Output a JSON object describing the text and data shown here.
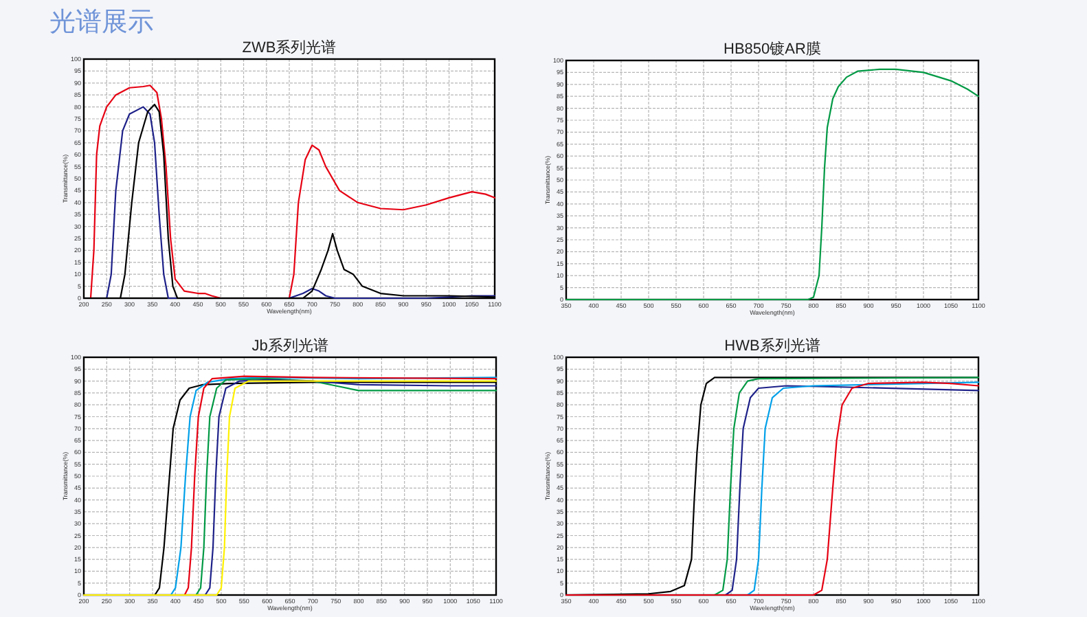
{
  "chart_data": [
    {
      "type": "line",
      "title": "ZWB系列光谱",
      "xlabel": "Wavelength(nm)",
      "ylabel": "Transmittance(%)",
      "annotations": [
        "光谱展示"
      ],
      "xlim": [
        200,
        1100
      ],
      "ylim": [
        0,
        100
      ],
      "xticks": [
        200,
        250,
        300,
        350,
        400,
        450,
        500,
        550,
        600,
        650,
        700,
        750,
        800,
        850,
        900,
        950,
        1000,
        1050,
        1100
      ],
      "yticks": [
        0,
        5,
        10,
        15,
        20,
        25,
        30,
        35,
        40,
        45,
        50,
        55,
        60,
        65,
        70,
        75,
        80,
        85,
        90,
        95,
        100
      ],
      "grid": true,
      "series": [
        {
          "color": "#e60012",
          "x": [
            200,
            215,
            222,
            228,
            235,
            250,
            270,
            300,
            330,
            345,
            360,
            370,
            380,
            390,
            400,
            420,
            450,
            465,
            480,
            500,
            600,
            650,
            660,
            670,
            685,
            700,
            715,
            730,
            760,
            800,
            850,
            900,
            950,
            1000,
            1050,
            1080,
            1100
          ],
          "values": [
            0,
            0,
            20,
            60,
            72,
            80,
            85,
            88,
            88.5,
            89,
            86,
            75,
            55,
            25,
            8,
            3,
            2,
            2,
            1,
            0,
            0,
            0,
            10,
            40,
            58,
            64,
            62,
            55,
            45,
            40,
            37.5,
            37,
            39,
            42,
            44.5,
            43.5,
            42
          ]
        },
        {
          "color": "#1d2088",
          "x": [
            200,
            250,
            260,
            270,
            285,
            300,
            330,
            345,
            355,
            365,
            375,
            385,
            650,
            680,
            700,
            715,
            730,
            750,
            950,
            1050,
            1100
          ],
          "values": [
            0,
            0,
            10,
            45,
            70,
            77,
            80,
            77,
            65,
            35,
            10,
            0,
            0,
            2,
            4,
            3,
            1,
            0,
            0,
            1,
            1
          ]
        },
        {
          "color": "#000000",
          "x": [
            200,
            280,
            290,
            305,
            320,
            340,
            355,
            365,
            375,
            385,
            395,
            405,
            680,
            700,
            720,
            735,
            745,
            755,
            770,
            790,
            810,
            850,
            900,
            1000,
            1100
          ],
          "values": [
            0,
            0,
            10,
            40,
            65,
            78,
            81,
            78,
            60,
            25,
            5,
            0,
            0,
            3,
            12,
            20,
            27,
            20,
            12,
            10,
            5,
            2,
            1,
            1,
            0.5
          ]
        }
      ]
    },
    {
      "type": "line",
      "title": "HB850镀AR膜",
      "xlabel": "Wavelength(nm)",
      "ylabel": "Transmittance(%)",
      "xlim": [
        350,
        1100
      ],
      "ylim": [
        0,
        100
      ],
      "xticks": [
        350,
        400,
        450,
        500,
        550,
        600,
        650,
        700,
        750,
        800,
        850,
        900,
        950,
        1000,
        1050,
        1100
      ],
      "yticks": [
        0,
        5,
        10,
        15,
        20,
        25,
        30,
        35,
        40,
        45,
        50,
        55,
        60,
        65,
        70,
        75,
        80,
        85,
        90,
        95,
        100
      ],
      "grid": true,
      "series": [
        {
          "color": "#009944",
          "x": [
            350,
            790,
            800,
            810,
            815,
            820,
            825,
            835,
            845,
            860,
            880,
            920,
            950,
            1000,
            1050,
            1080,
            1100
          ],
          "values": [
            0,
            0,
            1,
            10,
            30,
            55,
            72,
            84,
            89,
            93,
            95.5,
            96.3,
            96.3,
            95,
            91.5,
            88,
            85
          ]
        }
      ]
    },
    {
      "type": "line",
      "title": "Jb系列光谱",
      "xlabel": "Wavelength(nm)",
      "ylabel": "Transmittance(%)",
      "xlim": [
        200,
        1100
      ],
      "ylim": [
        0,
        100
      ],
      "xticks": [
        200,
        250,
        300,
        350,
        400,
        450,
        500,
        550,
        600,
        650,
        700,
        750,
        800,
        850,
        900,
        950,
        1000,
        1050,
        1100
      ],
      "yticks": [
        0,
        5,
        10,
        15,
        20,
        25,
        30,
        35,
        40,
        45,
        50,
        55,
        60,
        65,
        70,
        75,
        80,
        85,
        90,
        95,
        100
      ],
      "grid": true,
      "series": [
        {
          "color": "#000000",
          "x": [
            200,
            355,
            365,
            375,
            385,
            395,
            410,
            430,
            460,
            520,
            700,
            1100
          ],
          "values": [
            0,
            0,
            3,
            20,
            45,
            70,
            82,
            87,
            88.5,
            89,
            89.5,
            89.5
          ]
        },
        {
          "color": "#00a0e9",
          "x": [
            200,
            390,
            400,
            412,
            422,
            432,
            445,
            470,
            520,
            600,
            800,
            1100
          ],
          "values": [
            0,
            0,
            3,
            20,
            50,
            75,
            86,
            89.5,
            91,
            91.5,
            91,
            91.5
          ]
        },
        {
          "color": "#e60012",
          "x": [
            200,
            420,
            428,
            435,
            442,
            450,
            462,
            480,
            550,
            700,
            1100
          ],
          "values": [
            0,
            0,
            3,
            20,
            50,
            75,
            87,
            91,
            92,
            91.5,
            91
          ]
        },
        {
          "color": "#009944",
          "x": [
            200,
            445,
            455,
            462,
            468,
            475,
            490,
            510,
            600,
            700,
            750,
            800,
            900,
            1100
          ],
          "values": [
            0,
            0,
            3,
            20,
            50,
            75,
            87,
            90.5,
            91,
            90,
            88,
            86,
            86,
            86
          ]
        },
        {
          "color": "#1d2088",
          "x": [
            200,
            465,
            475,
            482,
            488,
            495,
            510,
            540,
            600,
            700,
            800,
            1000,
            1100
          ],
          "values": [
            0,
            0,
            3,
            20,
            50,
            75,
            87,
            90,
            90.5,
            90,
            88.5,
            88,
            88
          ]
        },
        {
          "color": "#fff100",
          "x": [
            200,
            490,
            500,
            507,
            512,
            518,
            530,
            560,
            650,
            1100
          ],
          "values": [
            0,
            0,
            3,
            20,
            50,
            75,
            87,
            90,
            90,
            90
          ]
        }
      ]
    },
    {
      "type": "line",
      "title": "HWB系列光谱",
      "xlabel": "Wavelength(nm)",
      "ylabel": "Transmittance(%)",
      "xlim": [
        350,
        1100
      ],
      "ylim": [
        0,
        100
      ],
      "xticks": [
        350,
        400,
        450,
        500,
        550,
        600,
        650,
        700,
        750,
        800,
        850,
        900,
        950,
        1000,
        1050,
        1100
      ],
      "yticks": [
        0,
        5,
        10,
        15,
        20,
        25,
        30,
        35,
        40,
        45,
        50,
        55,
        60,
        65,
        70,
        75,
        80,
        85,
        90,
        95,
        100
      ],
      "grid": true,
      "series": [
        {
          "color": "#000000",
          "x": [
            350,
            500,
            540,
            565,
            578,
            583,
            588,
            595,
            605,
            620,
            700,
            1100
          ],
          "values": [
            0,
            0.5,
            1.5,
            4,
            15,
            40,
            60,
            80,
            89,
            91.5,
            91.5,
            91.5
          ]
        },
        {
          "color": "#009944",
          "x": [
            350,
            620,
            635,
            643,
            649,
            655,
            665,
            680,
            700,
            1100
          ],
          "values": [
            0,
            0,
            2,
            15,
            45,
            70,
            85,
            90,
            91,
            91.5
          ]
        },
        {
          "color": "#1d2088",
          "x": [
            350,
            640,
            652,
            660,
            666,
            672,
            685,
            700,
            750,
            850,
            1100
          ],
          "values": [
            0,
            0,
            2,
            15,
            45,
            70,
            83,
            87,
            88,
            87.5,
            86
          ]
        },
        {
          "color": "#00a0e9",
          "x": [
            350,
            680,
            692,
            700,
            706,
            712,
            725,
            745,
            800,
            1000,
            1100
          ],
          "values": [
            0,
            0,
            2,
            15,
            45,
            70,
            83,
            87,
            88,
            89,
            89.5
          ]
        },
        {
          "color": "#e60012",
          "x": [
            350,
            800,
            815,
            825,
            835,
            842,
            852,
            870,
            900,
            1000,
            1050,
            1100
          ],
          "values": [
            0,
            0,
            2,
            15,
            45,
            65,
            80,
            87,
            89,
            89.5,
            89,
            88
          ]
        }
      ]
    }
  ]
}
